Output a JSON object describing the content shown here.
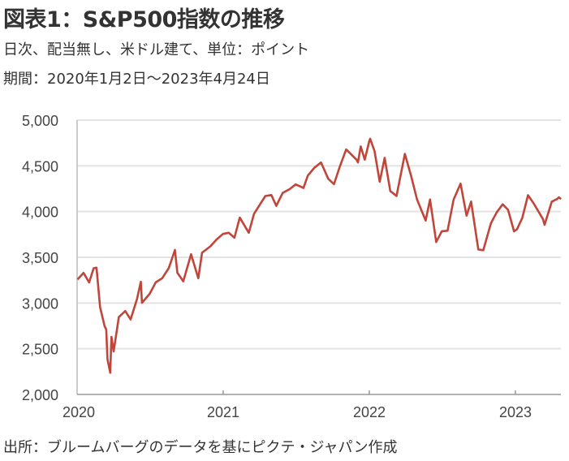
{
  "title": "図表1：S&P500指数の推移",
  "subtitle1": "日次、配当無し、米ドル建て、単位：ポイント",
  "subtitle2": "期間：2020年1月2日～2023年4月24日",
  "source": "出所：ブルームバーグのデータを基にピクテ・ジャパン作成",
  "chart_data": {
    "type": "line",
    "title": "S&P500指数の推移",
    "xlabel": "",
    "ylabel": "ポイント",
    "ylim": [
      2000,
      5000
    ],
    "yticks": [
      2000,
      2500,
      3000,
      3500,
      4000,
      4500,
      5000
    ],
    "ytick_labels": [
      "2,000",
      "2,500",
      "3,000",
      "3,500",
      "4,000",
      "4,500",
      "5,000"
    ],
    "xticks": [
      "2020",
      "2021",
      "2022",
      "2023"
    ],
    "grid": true,
    "line_color": "#c0453a",
    "series": [
      {
        "name": "S&P500",
        "points": [
          [
            "2020-01-02",
            3258
          ],
          [
            "2020-01-17",
            3330
          ],
          [
            "2020-01-31",
            3225
          ],
          [
            "2020-02-12",
            3380
          ],
          [
            "2020-02-19",
            3386
          ],
          [
            "2020-02-28",
            2954
          ],
          [
            "2020-03-09",
            2746
          ],
          [
            "2020-03-13",
            2711
          ],
          [
            "2020-03-16",
            2386
          ],
          [
            "2020-03-23",
            2237
          ],
          [
            "2020-03-26",
            2630
          ],
          [
            "2020-04-01",
            2470
          ],
          [
            "2020-04-14",
            2846
          ],
          [
            "2020-04-30",
            2912
          ],
          [
            "2020-05-13",
            2820
          ],
          [
            "2020-05-29",
            3044
          ],
          [
            "2020-06-08",
            3232
          ],
          [
            "2020-06-11",
            3002
          ],
          [
            "2020-06-30",
            3100
          ],
          [
            "2020-07-15",
            3226
          ],
          [
            "2020-07-31",
            3271
          ],
          [
            "2020-08-17",
            3381
          ],
          [
            "2020-09-02",
            3580
          ],
          [
            "2020-09-08",
            3331
          ],
          [
            "2020-09-23",
            3237
          ],
          [
            "2020-10-12",
            3534
          ],
          [
            "2020-10-30",
            3270
          ],
          [
            "2020-11-09",
            3550
          ],
          [
            "2020-11-30",
            3621
          ],
          [
            "2020-12-15",
            3695
          ],
          [
            "2020-12-31",
            3756
          ],
          [
            "2021-01-15",
            3768
          ],
          [
            "2021-01-29",
            3714
          ],
          [
            "2021-02-12",
            3934
          ],
          [
            "2021-03-04",
            3768
          ],
          [
            "2021-03-17",
            3974
          ],
          [
            "2021-04-15",
            4170
          ],
          [
            "2021-04-30",
            4181
          ],
          [
            "2021-05-12",
            4063
          ],
          [
            "2021-05-28",
            4204
          ],
          [
            "2021-06-15",
            4246
          ],
          [
            "2021-06-30",
            4297
          ],
          [
            "2021-07-19",
            4258
          ],
          [
            "2021-07-30",
            4395
          ],
          [
            "2021-08-16",
            4480
          ],
          [
            "2021-09-02",
            4537
          ],
          [
            "2021-09-20",
            4358
          ],
          [
            "2021-10-04",
            4300
          ],
          [
            "2021-10-18",
            4486
          ],
          [
            "2021-11-04",
            4680
          ],
          [
            "2021-11-30",
            4567
          ],
          [
            "2021-12-03",
            4538
          ],
          [
            "2021-12-10",
            4712
          ],
          [
            "2021-12-20",
            4568
          ],
          [
            "2021-12-31",
            4766
          ],
          [
            "2022-01-03",
            4796
          ],
          [
            "2022-01-14",
            4662
          ],
          [
            "2022-01-27",
            4326
          ],
          [
            "2022-02-09",
            4587
          ],
          [
            "2022-02-23",
            4225
          ],
          [
            "2022-03-08",
            4170
          ],
          [
            "2022-03-29",
            4631
          ],
          [
            "2022-04-14",
            4392
          ],
          [
            "2022-04-29",
            4132
          ],
          [
            "2022-05-20",
            3901
          ],
          [
            "2022-05-31",
            4132
          ],
          [
            "2022-06-16",
            3667
          ],
          [
            "2022-06-30",
            3785
          ],
          [
            "2022-07-14",
            3790
          ],
          [
            "2022-07-29",
            4130
          ],
          [
            "2022-08-16",
            4305
          ],
          [
            "2022-08-31",
            3955
          ],
          [
            "2022-09-12",
            4110
          ],
          [
            "2022-09-30",
            3585
          ],
          [
            "2022-10-12",
            3577
          ],
          [
            "2022-10-31",
            3872
          ],
          [
            "2022-11-15",
            3991
          ],
          [
            "2022-11-30",
            4080
          ],
          [
            "2022-12-13",
            4019
          ],
          [
            "2022-12-28",
            3783
          ],
          [
            "2023-01-05",
            3808
          ],
          [
            "2023-01-18",
            3929
          ],
          [
            "2023-02-02",
            4179
          ],
          [
            "2023-02-16",
            4090
          ],
          [
            "2023-03-09",
            3918
          ],
          [
            "2023-03-13",
            3855
          ],
          [
            "2023-03-31",
            4109
          ],
          [
            "2023-04-14",
            4137
          ],
          [
            "2023-04-18",
            4155
          ],
          [
            "2023-04-24",
            4137
          ]
        ]
      }
    ]
  }
}
